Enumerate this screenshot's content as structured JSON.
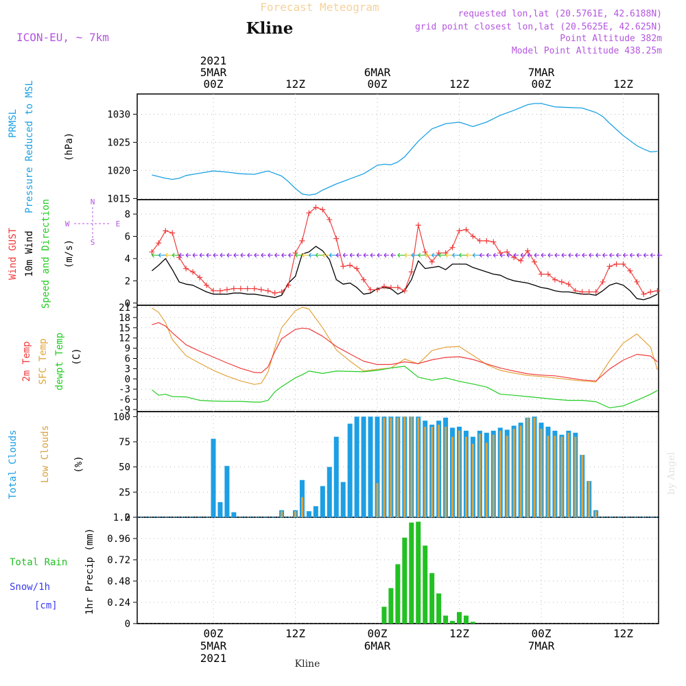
{
  "header": {
    "title": "Forecast Meteogram",
    "location": "Kline",
    "model": "ICON-EU, ~ 7km",
    "requested": "requested lon,lat (20.5761E, 42.6188N)",
    "grid": "grid point closest lon,lat (20.5625E, 42.625N)",
    "altitude": "Point Altitude 382m",
    "model_altitude": "Model Point Altitude 438.25m",
    "footer_label": "Kline",
    "watermark": "by Angel"
  },
  "time_axis": {
    "top_labels": [
      {
        "hour": 0,
        "lines": [
          "2021",
          "5MAR",
          "00Z"
        ]
      },
      {
        "hour": 12,
        "lines": [
          "12Z"
        ]
      },
      {
        "hour": 24,
        "lines": [
          "6MAR",
          "00Z"
        ]
      },
      {
        "hour": 36,
        "lines": [
          "12Z"
        ]
      },
      {
        "hour": 48,
        "lines": [
          "7MAR",
          "00Z"
        ]
      },
      {
        "hour": 60,
        "lines": [
          "12Z"
        ]
      }
    ],
    "bottom_labels": [
      {
        "hour": 0,
        "lines": [
          "00Z",
          "5MAR",
          "2021"
        ]
      },
      {
        "hour": 12,
        "lines": [
          "12Z"
        ]
      },
      {
        "hour": 24,
        "lines": [
          "00Z",
          "6MAR"
        ]
      },
      {
        "hour": 36,
        "lines": [
          "12Z"
        ]
      },
      {
        "hour": 48,
        "lines": [
          "00Z",
          "7MAR"
        ]
      },
      {
        "hour": 60,
        "lines": [
          "12Z"
        ]
      }
    ]
  },
  "colors": {
    "pressure": "#1ba1e2",
    "gust": "#ef3b3b",
    "wind": "#000000",
    "temp2m": "#ef3b3b",
    "sfc": "#e3a33a",
    "dewpt": "#22cc22",
    "total_clouds": "#1c9fe4",
    "low_clouds": "#d8a343",
    "rain": "#22c022",
    "snow": "#3b3bef",
    "header_purple": "#b455e0",
    "title_gold": "#f5d29a"
  },
  "panels": {
    "pressure": {
      "labels": [
        "PRMSL",
        "Pressure Reduced to MSL",
        "(hPa)"
      ],
      "yticks": [
        "1015",
        "1020",
        "1025",
        "1030"
      ]
    },
    "wind": {
      "labels": [
        "Wind GUST",
        "10m Wind",
        "Speed and Direction",
        "(m/s)"
      ],
      "yticks": [
        "0",
        "2",
        "4",
        "6",
        "8"
      ],
      "compass": [
        "N",
        "W",
        "E",
        "S"
      ]
    },
    "temp": {
      "labels": [
        "2m Temp",
        "SFC Temp",
        "dewpt Temp",
        "(C)"
      ],
      "yticks": [
        "-9",
        "-6",
        "-3",
        "0",
        "3",
        "6",
        "9",
        "12",
        "15",
        "18",
        "21"
      ]
    },
    "clouds": {
      "labels": [
        "Total Clouds",
        "Low Clouds",
        "(%)"
      ],
      "yticks": [
        "0",
        "25",
        "50",
        "75",
        "100"
      ]
    },
    "precip": {
      "labels": [
        "Total Rain",
        "Snow/1h",
        "[cm]",
        "1hr Precip (mm)"
      ],
      "yticks": [
        "0",
        "0.24",
        "0.48",
        "0.72",
        "0.96",
        "1.2"
      ]
    }
  },
  "chart_data": [
    {
      "type": "line",
      "panel": "pressure",
      "ylabel": "(hPa)",
      "ylim": [
        1014.8,
        1033.6
      ],
      "x_hours": [
        -9,
        -7,
        -6,
        -5,
        -4,
        -2,
        0,
        2,
        4,
        6,
        8,
        10,
        11,
        12,
        13,
        14,
        15,
        16,
        18,
        20,
        22,
        24,
        25,
        26,
        27,
        28,
        30,
        32,
        34,
        36,
        37,
        38,
        40,
        42,
        44,
        46,
        47,
        48,
        50,
        52,
        54,
        56,
        57,
        58,
        60,
        62,
        63,
        64,
        65
      ],
      "series": [
        {
          "name": "PRMSL",
          "values": [
            1019.2,
            1018.6,
            1018.4,
            1018.6,
            1019.1,
            1019.5,
            1019.9,
            1019.7,
            1019.4,
            1019.3,
            1019.9,
            1019.0,
            1018.0,
            1016.8,
            1015.8,
            1015.6,
            1015.8,
            1016.5,
            1017.6,
            1018.5,
            1019.4,
            1020.9,
            1021.1,
            1021.0,
            1021.5,
            1022.4,
            1025.2,
            1027.4,
            1028.3,
            1028.6,
            1028.2,
            1027.8,
            1028.6,
            1029.8,
            1030.7,
            1031.7,
            1031.9,
            1031.9,
            1031.3,
            1031.2,
            1031.1,
            1030.3,
            1029.6,
            1028.4,
            1026.2,
            1024.4,
            1023.8,
            1023.3,
            1023.4
          ]
        }
      ]
    },
    {
      "type": "line",
      "panel": "wind",
      "ylabel": "(m/s)",
      "ylim": [
        -0.2,
        9.3
      ],
      "x_hours": [
        -9,
        -8,
        -7,
        -6,
        -5,
        -4,
        -3,
        -2,
        -1,
        0,
        1,
        2,
        3,
        4,
        5,
        6,
        7,
        8,
        9,
        10,
        11,
        12,
        13,
        14,
        15,
        16,
        17,
        18,
        19,
        20,
        21,
        22,
        23,
        24,
        25,
        26,
        27,
        28,
        29,
        30,
        31,
        32,
        33,
        34,
        35,
        36,
        37,
        38,
        39,
        40,
        41,
        42,
        43,
        44,
        45,
        46,
        47,
        48,
        49,
        50,
        51,
        52,
        53,
        54,
        55,
        56,
        57,
        58,
        59,
        60,
        61,
        62,
        63,
        64,
        65
      ],
      "series": [
        {
          "name": "Wind GUST",
          "values": [
            4.6,
            5.4,
            6.5,
            6.3,
            4.1,
            3.1,
            2.8,
            2.3,
            1.6,
            1.1,
            1.1,
            1.2,
            1.3,
            1.3,
            1.3,
            1.3,
            1.2,
            1.1,
            0.9,
            1.0,
            1.6,
            4.5,
            5.6,
            8.1,
            8.6,
            8.4,
            7.5,
            5.8,
            3.3,
            3.4,
            3.1,
            2.1,
            1.2,
            1.2,
            1.5,
            1.4,
            1.4,
            1.1,
            2.8,
            7.0,
            4.6,
            3.7,
            4.5,
            4.5,
            5.0,
            6.5,
            6.6,
            6.0,
            5.6,
            5.6,
            5.5,
            4.5,
            4.6,
            4.1,
            3.8,
            4.7,
            3.7,
            2.6,
            2.6,
            2.1,
            1.9,
            1.7,
            1.1,
            1.0,
            1.0,
            1.0,
            1.9,
            3.3,
            3.5,
            3.5,
            2.9,
            1.9,
            0.8,
            1.0,
            1.1
          ]
        },
        {
          "name": "10m Wind",
          "values": [
            2.9,
            3.4,
            4.0,
            3.0,
            1.9,
            1.7,
            1.6,
            1.3,
            1.0,
            0.8,
            0.8,
            0.8,
            0.9,
            0.9,
            0.8,
            0.8,
            0.7,
            0.6,
            0.5,
            0.7,
            1.8,
            2.4,
            4.4,
            4.6,
            5.1,
            4.7,
            3.9,
            2.1,
            1.7,
            1.8,
            1.4,
            0.8,
            0.9,
            1.3,
            1.4,
            1.3,
            0.8,
            1.1,
            2.1,
            3.8,
            3.1,
            3.2,
            3.3,
            3.0,
            3.5,
            3.5,
            3.5,
            3.2,
            3.0,
            2.8,
            2.6,
            2.5,
            2.2,
            2.0,
            1.9,
            1.8,
            1.6,
            1.4,
            1.3,
            1.1,
            1.0,
            1.0,
            0.9,
            0.8,
            0.8,
            0.7,
            1.1,
            1.6,
            1.8,
            1.6,
            1.1,
            0.4,
            0.3,
            0.5,
            0.8
          ]
        }
      ]
    },
    {
      "type": "line",
      "panel": "temp",
      "ylabel": "(C)",
      "ylim": [
        -9.6,
        21.6
      ],
      "x_hours": [
        -9,
        -8,
        -7,
        -6,
        -4,
        -2,
        0,
        2,
        4,
        6,
        7,
        8,
        9,
        10,
        12,
        13,
        14,
        16,
        18,
        20,
        22,
        24,
        26,
        28,
        30,
        32,
        34,
        36,
        38,
        40,
        42,
        44,
        46,
        48,
        50,
        52,
        54,
        56,
        58,
        60,
        62,
        64,
        65
      ],
      "series": [
        {
          "name": "2m Temp",
          "values": [
            15.9,
            16.5,
            15.5,
            13.5,
            10.0,
            8.1,
            6.4,
            4.7,
            3.1,
            1.9,
            1.8,
            3.5,
            8.0,
            11.8,
            14.5,
            14.9,
            14.7,
            12.5,
            9.5,
            7.3,
            5.2,
            4.2,
            4.2,
            5.0,
            4.5,
            5.6,
            6.3,
            6.5,
            5.7,
            4.4,
            3.2,
            2.3,
            1.5,
            1.1,
            0.9,
            0.3,
            -0.3,
            -0.6,
            2.9,
            5.5,
            7.2,
            6.7,
            5.0
          ]
        },
        {
          "name": "SFC Temp",
          "values": [
            20.8,
            19.5,
            16.5,
            11.5,
            6.8,
            4.6,
            2.5,
            0.8,
            -0.6,
            -1.6,
            -1.3,
            2.0,
            9.0,
            15.0,
            20.0,
            21.0,
            20.5,
            15.0,
            8.5,
            5.2,
            2.3,
            2.8,
            3.2,
            5.8,
            4.4,
            8.3,
            9.3,
            9.5,
            6.9,
            4.2,
            2.5,
            1.7,
            1.0,
            0.7,
            0.3,
            -0.2,
            -0.6,
            -0.9,
            5.3,
            10.5,
            13.2,
            9.3,
            2.7
          ]
        },
        {
          "name": "dewpt Temp",
          "values": [
            -3.2,
            -4.8,
            -4.5,
            -5.2,
            -5.3,
            -6.3,
            -6.5,
            -6.6,
            -6.6,
            -6.8,
            -6.8,
            -6.3,
            -3.8,
            -2.3,
            0.3,
            1.2,
            2.3,
            1.6,
            2.3,
            2.2,
            2.1,
            2.5,
            3.2,
            3.7,
            0.5,
            -0.4,
            0.3,
            -0.7,
            -1.5,
            -2.4,
            -4.5,
            -4.8,
            -5.2,
            -5.6,
            -6.0,
            -6.3,
            -6.3,
            -6.7,
            -8.5,
            -7.9,
            -6.3,
            -4.5,
            -3.4
          ]
        }
      ]
    },
    {
      "type": "bar",
      "panel": "clouds",
      "ylabel": "(%)",
      "ylim": [
        0,
        105
      ],
      "x_hours": [
        0,
        1,
        2,
        3,
        4,
        5,
        6,
        7,
        8,
        9,
        10,
        11,
        12,
        13,
        14,
        15,
        16,
        17,
        18,
        19,
        20,
        21,
        22,
        23,
        24,
        25,
        26,
        27,
        28,
        29,
        30,
        31,
        32,
        33,
        34,
        35,
        36,
        37,
        38,
        39,
        40,
        41,
        42,
        43,
        44,
        45,
        46,
        47,
        48,
        49,
        50,
        51,
        52,
        53,
        54,
        55,
        56,
        57,
        58,
        59,
        60
      ],
      "series": [
        {
          "name": "Total Clouds",
          "values": [
            78,
            15,
            51,
            5,
            0,
            0,
            0,
            0,
            0,
            0,
            7,
            0,
            7,
            37,
            6,
            11,
            31,
            50,
            80,
            35,
            93,
            100,
            100,
            100,
            100,
            100,
            100,
            100,
            100,
            100,
            100,
            96,
            92,
            96,
            99,
            89,
            90,
            86,
            80,
            86,
            84,
            86,
            89,
            87,
            91,
            94,
            99,
            100,
            94,
            90,
            86,
            82,
            86,
            84,
            62,
            36,
            7,
            0,
            0,
            0,
            0
          ]
        },
        {
          "name": "Low Clouds",
          "values": [
            0,
            0,
            0,
            0,
            0,
            0,
            0,
            0,
            0,
            0,
            6,
            0,
            6,
            20,
            0,
            0,
            0,
            0,
            0,
            0,
            0,
            0,
            0,
            0,
            34,
            99,
            99,
            99,
            100,
            100,
            99,
            90,
            90,
            92,
            90,
            80,
            86,
            80,
            73,
            83,
            74,
            82,
            86,
            81,
            88,
            91,
            99,
            99,
            88,
            81,
            81,
            80,
            84,
            80,
            62,
            36,
            6,
            0,
            0,
            0,
            0
          ]
        }
      ]
    },
    {
      "type": "bar",
      "panel": "precip",
      "ylabel": "1hr Precip (mm)",
      "ylim": [
        0,
        1.2
      ],
      "x_hours": [
        25,
        26,
        27,
        28,
        29,
        30,
        31,
        32,
        33,
        34,
        35,
        36,
        37,
        38
      ],
      "series": [
        {
          "name": "Total Rain",
          "values": [
            0.19,
            0.4,
            0.67,
            0.97,
            1.14,
            1.15,
            0.88,
            0.57,
            0.34,
            0.09,
            0.03,
            0.13,
            0.09,
            0.02
          ]
        }
      ]
    }
  ]
}
